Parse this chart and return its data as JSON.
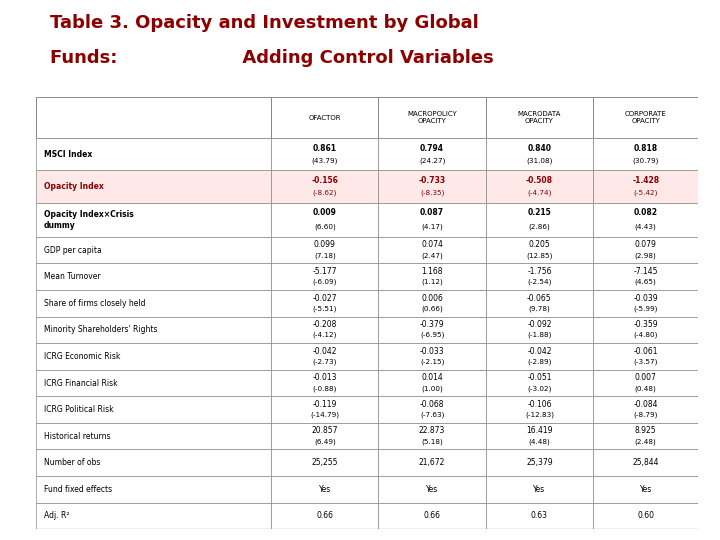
{
  "title_line1": "Table 3. Opacity and Investment by Global",
  "title_line2": "Funds:                    Adding Control Variables",
  "title_color": "#8B0000",
  "title_fontsize": 13,
  "col_headers": [
    "",
    "OFACTOR",
    "MACROPOLICY\nOPACITY",
    "MACRODATA\nOPACITY",
    "CORPORATE\nOPACITY"
  ],
  "rows": [
    {
      "label": "MSCI Index",
      "values": [
        "0.861\n(43.79)",
        "0.794\n(24.27)",
        "0.840\n(31.08)",
        "0.818\n(30.79)"
      ],
      "bold": true,
      "highlight": false
    },
    {
      "label": "Opacity Index",
      "values": [
        "-0.156\n(-8.62)",
        "-0.733\n(-8.35)",
        "-0.508\n(-4.74)",
        "-1.428\n(-5.42)"
      ],
      "bold": true,
      "highlight": true
    },
    {
      "label": "Opacity Index×Crisis\ndummy",
      "values": [
        "0.009\n(6.60)",
        "0.087\n(4.17)",
        "0.215\n(2.86)",
        "0.082\n(4.43)"
      ],
      "bold": true,
      "highlight": false
    },
    {
      "label": "GDP per capita",
      "values": [
        "0.099\n(7.18)",
        "0.074\n(2.47)",
        "0.205\n(12.85)",
        "0.079\n(2.98)"
      ],
      "bold": false,
      "highlight": false
    },
    {
      "label": "Mean Turnover",
      "values": [
        "-5.177\n(-6.09)",
        "1.168\n(1.12)",
        "-1.756\n(-2.54)",
        "-7.145\n(4.65)"
      ],
      "bold": false,
      "highlight": false
    },
    {
      "label": "Share of firms closely held",
      "values": [
        "-0.027\n(-5.51)",
        "0.006\n(0.66)",
        "-0.065\n(9.78)",
        "-0.039\n(-5.99)"
      ],
      "bold": false,
      "highlight": false
    },
    {
      "label": "Minority Shareholders' Rights",
      "values": [
        "-0.208\n(-4.12)",
        "-0.379\n(-6.95)",
        "-0.092\n(-1.88)",
        "-0.359\n(-4.80)"
      ],
      "bold": false,
      "highlight": false
    },
    {
      "label": "ICRG Economic Risk",
      "values": [
        "-0.042\n(-2.73)",
        "-0.033\n(-2.15)",
        "-0.042\n(-2.89)",
        "-0.061\n(-3.57)"
      ],
      "bold": false,
      "highlight": false
    },
    {
      "label": "ICRG Financial Risk",
      "values": [
        "-0.013\n(-0.88)",
        "0.014\n(1.00)",
        "-0.051\n(-3.02)",
        "0.007\n(0.48)"
      ],
      "bold": false,
      "highlight": false
    },
    {
      "label": "ICRG Political Risk",
      "values": [
        "-0.119\n(-14.79)",
        "-0.068\n(-7.63)",
        "-0.106\n(-12.83)",
        "-0.084\n(-8.79)"
      ],
      "bold": false,
      "highlight": false
    },
    {
      "label": "Historical returns",
      "values": [
        "20.857\n(6.49)",
        "22.873\n(5.18)",
        "16.419\n(4.48)",
        "8.925\n(2.48)"
      ],
      "bold": false,
      "highlight": false
    },
    {
      "label": "Number of obs",
      "values": [
        "25,255",
        "21,672",
        "25,379",
        "25,844"
      ],
      "bold": false,
      "highlight": false
    },
    {
      "label": "Fund fixed effects",
      "values": [
        "Yes",
        "Yes",
        "Yes",
        "Yes"
      ],
      "bold": false,
      "highlight": false
    },
    {
      "label": "Adj. R²",
      "values": [
        "0.66",
        "0.66",
        "0.63",
        "0.60"
      ],
      "bold": false,
      "highlight": false
    }
  ],
  "highlight_color": "#FFE8E8",
  "border_color": "#888888",
  "text_color_normal": "#000000",
  "text_color_highlight": "#8B0000",
  "fig_width": 7.2,
  "fig_height": 5.4,
  "dpi": 100
}
